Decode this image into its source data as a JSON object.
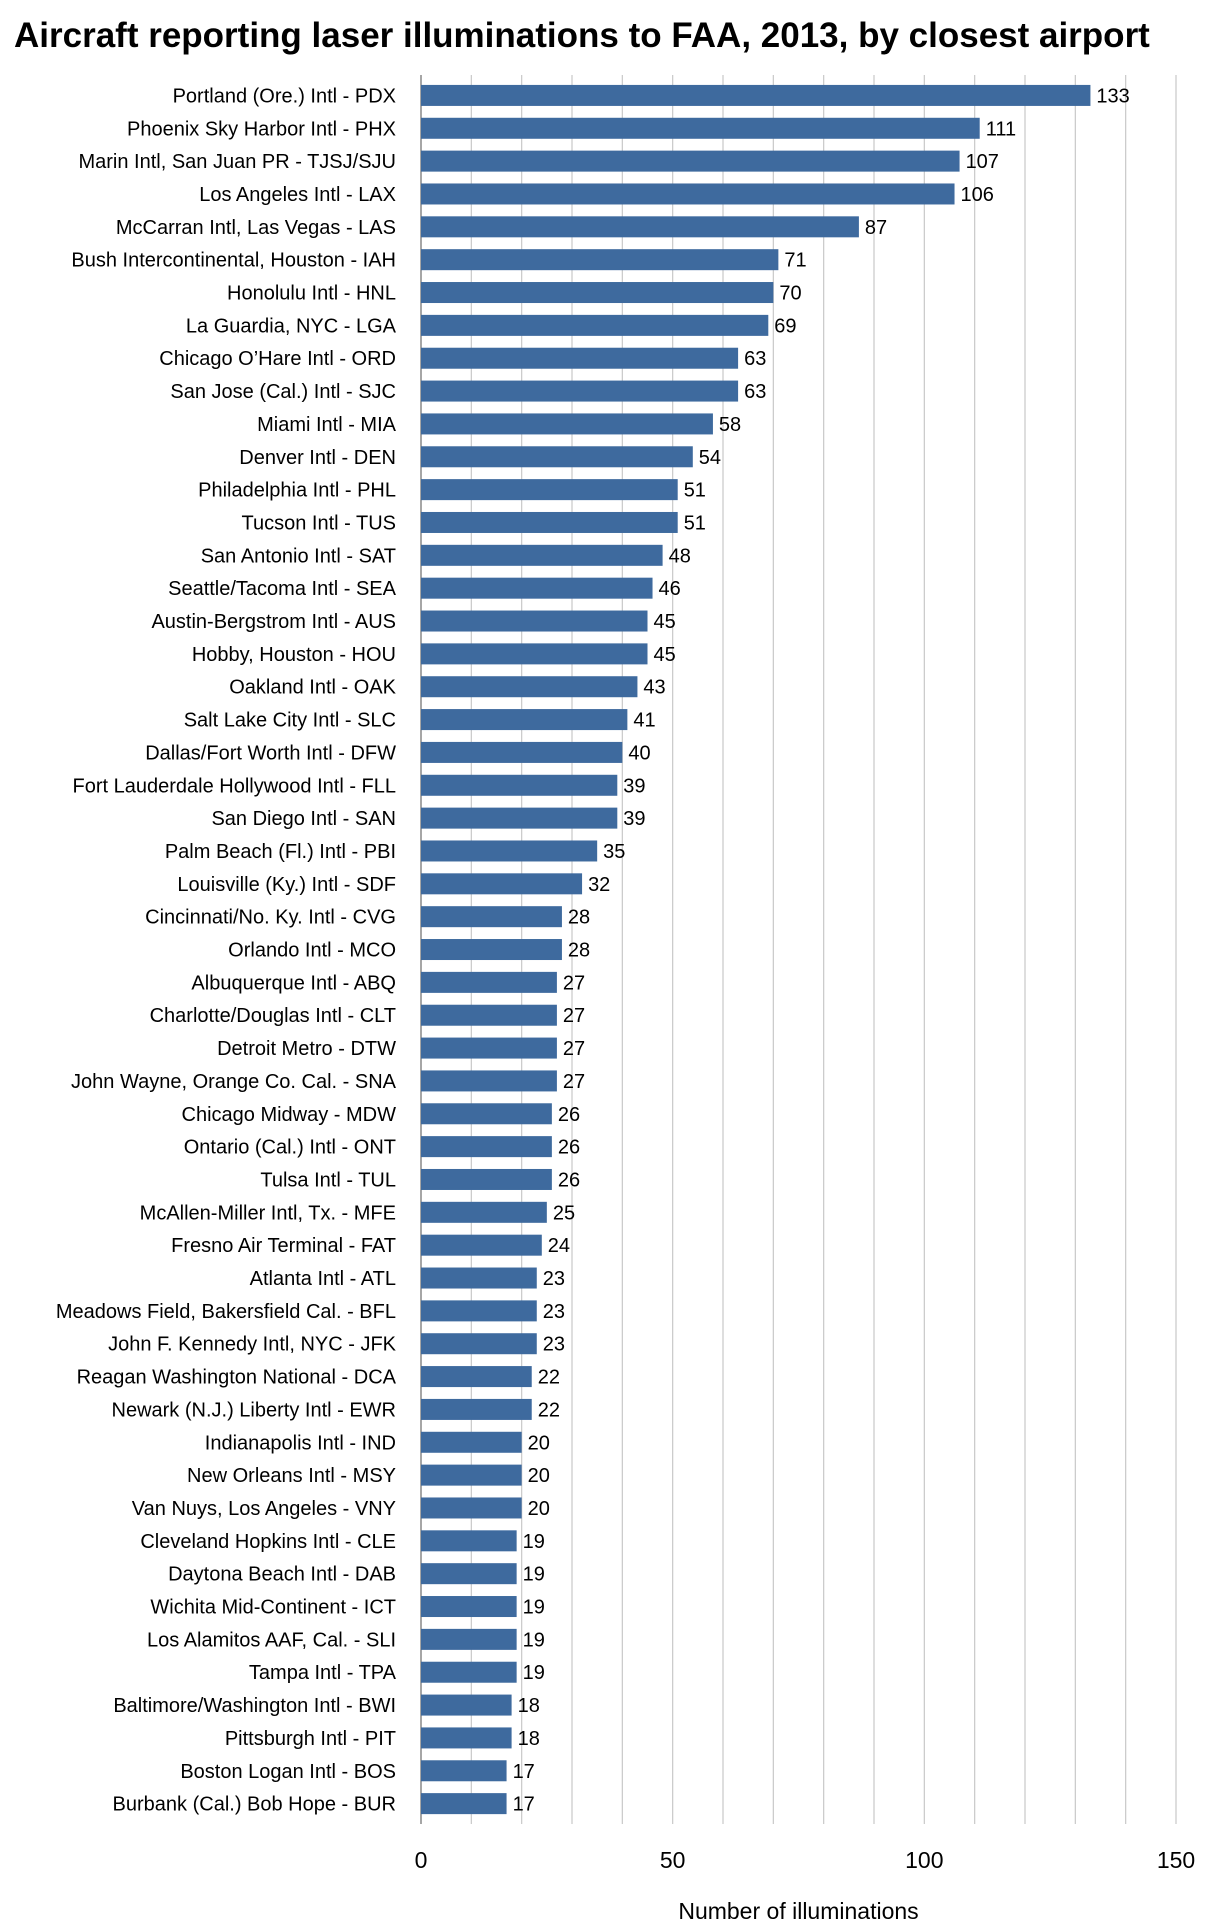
{
  "chart_data": {
    "type": "bar",
    "orientation": "horizontal",
    "title": "Aircraft reporting laser illuminations to FAA, 2013, by closest airport",
    "xlabel": "Number of illuminations",
    "ylabel": "",
    "xlim": [
      0,
      150
    ],
    "xticks": [
      0,
      50,
      100,
      150
    ],
    "grid": true,
    "bar_color": "#3e6a9e",
    "categories": [
      "Portland (Ore.) Intl - PDX",
      "Phoenix Sky Harbor Intl - PHX",
      "Marin Intl, San Juan PR - TJSJ/SJU",
      "Los Angeles Intl - LAX",
      "McCarran Intl, Las Vegas - LAS",
      "Bush Intercontinental, Houston - IAH",
      "Honolulu Intl - HNL",
      "La Guardia, NYC - LGA",
      "Chicago O’Hare Intl - ORD",
      "San Jose (Cal.) Intl - SJC",
      "Miami Intl - MIA",
      "Denver Intl - DEN",
      "Philadelphia Intl - PHL",
      "Tucson Intl - TUS",
      "San Antonio Intl - SAT",
      "Seattle/Tacoma Intl - SEA",
      "Austin-Bergstrom Intl - AUS",
      "Hobby, Houston - HOU",
      "Oakland Intl - OAK",
      "Salt Lake City Intl - SLC",
      "Dallas/Fort Worth Intl - DFW",
      "Fort Lauderdale Hollywood Intl - FLL",
      "San Diego Intl - SAN",
      "Palm Beach (Fl.) Intl - PBI",
      "Louisville (Ky.) Intl - SDF",
      "Cincinnati/No. Ky. Intl - CVG",
      "Orlando Intl - MCO",
      "Albuquerque Intl - ABQ",
      "Charlotte/Douglas Intl - CLT",
      "Detroit Metro - DTW",
      "John Wayne, Orange Co. Cal. - SNA",
      "Chicago Midway - MDW",
      "Ontario (Cal.) Intl - ONT",
      "Tulsa Intl - TUL",
      "McAllen-Miller Intl, Tx. - MFE",
      "Fresno Air Terminal - FAT",
      "Atlanta Intl - ATL",
      "Meadows Field, Bakersfield Cal. - BFL",
      "John F. Kennedy Intl, NYC - JFK",
      "Reagan Washington National - DCA",
      "Newark (N.J.) Liberty Intl - EWR",
      "Indianapolis Intl - IND",
      "New Orleans Intl - MSY",
      "Van Nuys, Los Angeles - VNY",
      "Cleveland Hopkins Intl - CLE",
      "Daytona Beach Intl - DAB",
      "Wichita Mid-Continent - ICT",
      "Los Alamitos AAF, Cal. - SLI",
      "Tampa Intl - TPA",
      "Baltimore/Washington Intl - BWI",
      "Pittsburgh Intl - PIT",
      "Boston Logan Intl - BOS",
      "Burbank (Cal.) Bob Hope - BUR"
    ],
    "values": [
      133,
      111,
      107,
      106,
      87,
      71,
      70,
      69,
      63,
      63,
      58,
      54,
      51,
      51,
      48,
      46,
      45,
      45,
      43,
      41,
      40,
      39,
      39,
      35,
      32,
      28,
      28,
      27,
      27,
      27,
      27,
      26,
      26,
      26,
      25,
      24,
      23,
      23,
      23,
      22,
      22,
      20,
      20,
      20,
      19,
      19,
      19,
      19,
      19,
      18,
      18,
      17,
      17
    ]
  }
}
